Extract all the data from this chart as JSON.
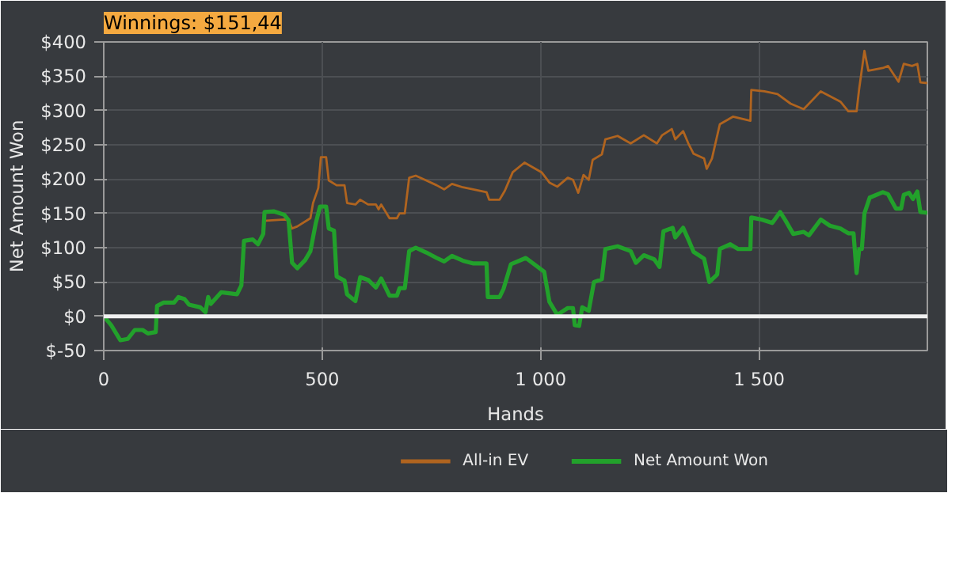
{
  "chart_data": {
    "type": "line",
    "title": "Winnings: $151,44",
    "xlabel": "Hands",
    "ylabel": "Net Amount Won",
    "xlim": [
      0,
      1885
    ],
    "ylim": [
      -50,
      400
    ],
    "xticks": [
      0,
      500,
      {
        "value": 1000,
        "label": "1 000"
      },
      {
        "value": 1500,
        "label": "1 500"
      }
    ],
    "yticks": [
      {
        "value": -50,
        "label": "$-50"
      },
      {
        "value": 0,
        "label": "$0"
      },
      {
        "value": 50,
        "label": "$50"
      },
      {
        "value": 100,
        "label": "$100"
      },
      {
        "value": 150,
        "label": "$150"
      },
      {
        "value": 200,
        "label": "$200"
      },
      {
        "value": 250,
        "label": "$250"
      },
      {
        "value": 300,
        "label": "$300"
      },
      {
        "value": 350,
        "label": "$350"
      },
      {
        "value": 400,
        "label": "$400"
      }
    ],
    "grid": true,
    "legend": "bottom",
    "ref_lines": [
      {
        "axis": "y",
        "value": 0,
        "color": "#f0f0f0"
      }
    ],
    "series": [
      {
        "name": "All-in EV",
        "color": "#b0641f",
        "x": [
          365,
          413,
          423,
          431,
          443,
          473,
          479,
          491,
          497,
          509,
          515,
          533,
          551,
          557,
          576,
          587,
          605,
          623,
          629,
          635,
          654,
          671,
          677,
          689,
          699,
          714,
          738,
          762,
          779,
          797,
          822,
          846,
          876,
          882,
          906,
          918,
          936,
          963,
          1002,
          1020,
          1038,
          1062,
          1074,
          1086,
          1098,
          1110,
          1119,
          1140,
          1148,
          1176,
          1206,
          1236,
          1266,
          1278,
          1300,
          1308,
          1326,
          1338,
          1350,
          1374,
          1380,
          1392,
          1410,
          1440,
          1480,
          1482,
          1512,
          1542,
          1572,
          1602,
          1641,
          1686,
          1704,
          1723,
          1729,
          1741,
          1750,
          1783,
          1795,
          1819,
          1831,
          1850,
          1862,
          1869,
          1885
        ],
        "values": [
          139,
          141,
          140,
          128,
          131,
          143,
          165,
          187,
          232,
          232,
          198,
          191,
          191,
          165,
          163,
          170,
          163,
          163,
          156,
          163,
          143,
          143,
          150,
          150,
          202,
          205,
          198,
          191,
          185,
          193,
          188,
          185,
          181,
          170,
          170,
          183,
          210,
          224,
          210,
          195,
          189,
          202,
          199,
          180,
          206,
          199,
          228,
          236,
          258,
          263,
          252,
          264,
          252,
          264,
          273,
          258,
          270,
          252,
          237,
          230,
          215,
          230,
          280,
          291,
          285,
          330,
          328,
          324,
          310,
          302,
          328,
          313,
          299,
          299,
          332,
          387,
          358,
          362,
          365,
          342,
          368,
          365,
          368,
          341,
          340
        ]
      },
      {
        "name": "Net Amount Won",
        "color": "#22a12b",
        "x": [
          0,
          17,
          38,
          55,
          71,
          89,
          101,
          119,
          122,
          137,
          161,
          171,
          185,
          195,
          221,
          233,
          239,
          245,
          269,
          305,
          315,
          321,
          341,
          353,
          365,
          368,
          389,
          413,
          423,
          431,
          443,
          461,
          473,
          485,
          495,
          509,
          515,
          527,
          533,
          551,
          557,
          576,
          587,
          605,
          623,
          635,
          654,
          671,
          677,
          689,
          699,
          714,
          738,
          762,
          779,
          797,
          822,
          846,
          876,
          879,
          906,
          915,
          932,
          966,
          1008,
          1020,
          1038,
          1062,
          1074,
          1078,
          1088,
          1095,
          1110,
          1122,
          1140,
          1148,
          1176,
          1206,
          1218,
          1236,
          1260,
          1272,
          1281,
          1302,
          1308,
          1326,
          1338,
          1350,
          1374,
          1386,
          1404,
          1410,
          1434,
          1452,
          1480,
          1482,
          1506,
          1530,
          1548,
          1560,
          1578,
          1602,
          1614,
          1641,
          1662,
          1686,
          1704,
          1716,
          1723,
          1729,
          1735,
          1741,
          1753,
          1783,
          1795,
          1813,
          1825,
          1831,
          1843,
          1852,
          1862,
          1869,
          1885
        ],
        "values": [
          0,
          -13,
          -35,
          -33,
          -20,
          -20,
          -25,
          -23,
          15,
          20,
          20,
          28,
          25,
          17,
          13,
          6,
          28,
          18,
          35,
          32,
          45,
          110,
          112,
          105,
          120,
          152,
          153,
          148,
          140,
          78,
          70,
          82,
          95,
          135,
          160,
          160,
          128,
          125,
          58,
          52,
          32,
          22,
          57,
          53,
          42,
          55,
          30,
          30,
          41,
          41,
          95,
          100,
          93,
          85,
          80,
          88,
          81,
          77,
          77,
          28,
          28,
          40,
          76,
          85,
          65,
          21,
          2,
          12,
          12,
          -13,
          -14,
          13,
          8,
          50,
          54,
          98,
          102,
          95,
          78,
          89,
          83,
          72,
          124,
          129,
          115,
          129,
          112,
          94,
          84,
          50,
          61,
          98,
          105,
          98,
          98,
          144,
          141,
          136,
          152,
          140,
          120,
          123,
          118,
          141,
          132,
          128,
          121,
          121,
          63,
          98,
          98,
          150,
          173,
          181,
          178,
          157,
          157,
          177,
          180,
          171,
          182,
          152,
          151
        ]
      }
    ]
  }
}
